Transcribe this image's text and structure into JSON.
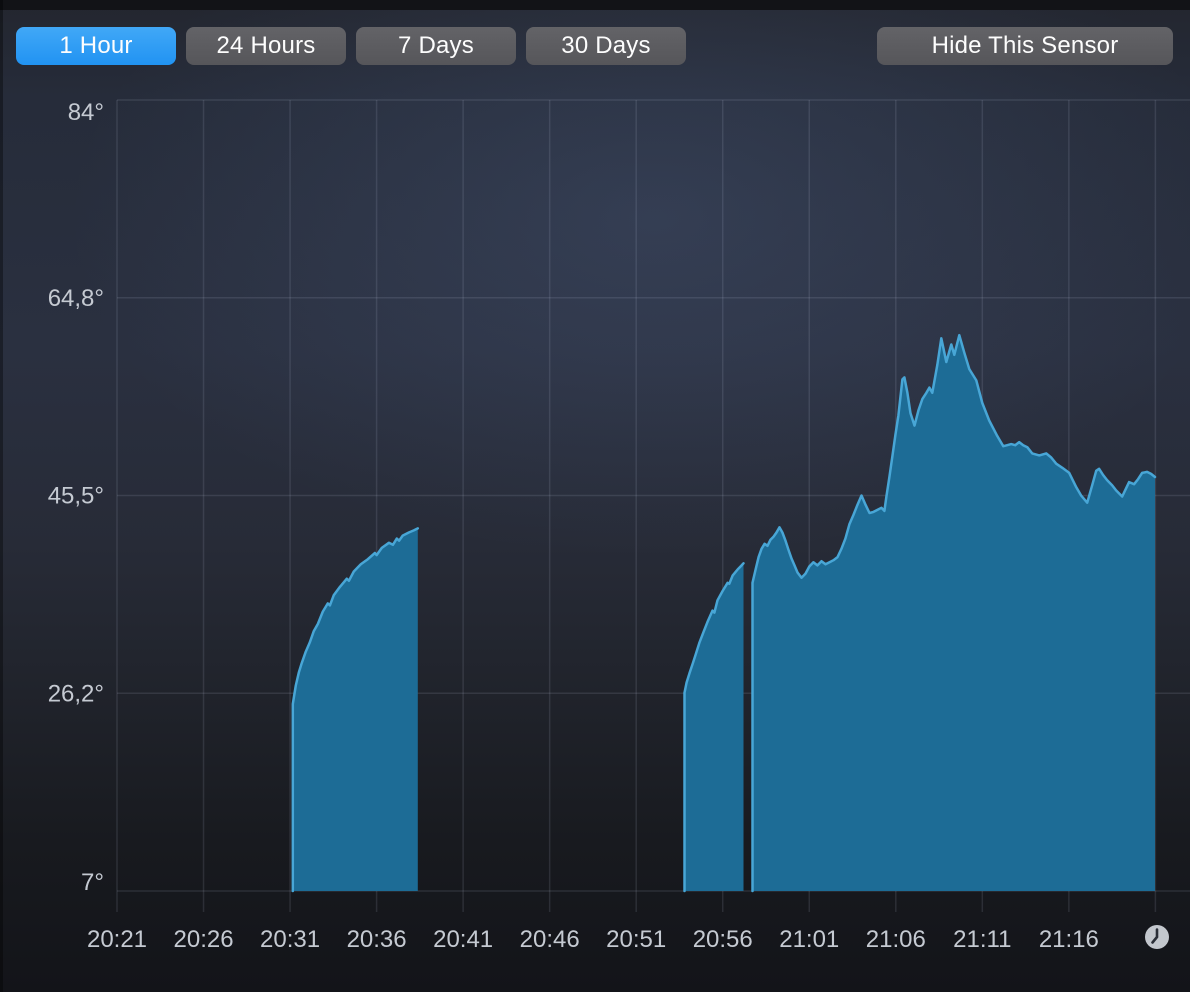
{
  "toolbar": {
    "range_buttons": [
      {
        "id": "1-hour",
        "label": "1 Hour",
        "selected": true
      },
      {
        "id": "24-hours",
        "label": "24 Hours",
        "selected": false
      },
      {
        "id": "7-days",
        "label": "7 Days",
        "selected": false
      },
      {
        "id": "30-days",
        "label": "30 Days",
        "selected": false
      }
    ],
    "hide_sensor_label": "Hide This Sensor"
  },
  "icons": {
    "clock": "clock-icon"
  },
  "chart_data": {
    "type": "area",
    "series_name": "sensor temperature",
    "unit": "°",
    "decimal_separator": ",",
    "legend": null,
    "grid": true,
    "x_axis": {
      "tick_labels": [
        "20:21",
        "20:26",
        "20:31",
        "20:36",
        "20:41",
        "20:46",
        "20:51",
        "20:56",
        "21:01",
        "21:06",
        "21:11",
        "21:16"
      ],
      "tick_minutes": [
        21,
        26,
        31,
        36,
        41,
        46,
        51,
        56,
        61,
        66,
        71,
        76
      ],
      "extra_gridline_minutes": [
        81
      ],
      "domain_minutes": [
        21,
        83
      ],
      "minutes_are_after": "20:00"
    },
    "y_axis": {
      "tick_labels": [
        "84°",
        "64,8°",
        "45,5°",
        "26,2°",
        "7°"
      ],
      "tick_values": [
        84,
        64.75,
        45.5,
        26.25,
        7
      ],
      "domain": [
        7,
        84
      ]
    },
    "colors": {
      "area_fill": "#1d6c96",
      "line": "#48a6d6",
      "grid": "rgba(205,215,235,0.12)",
      "tick_text": "#c5cad2",
      "selected_button": "#2f9ef5"
    },
    "segments": [
      {
        "name": "segment-1",
        "points": [
          [
            31.16,
            25.2
          ],
          [
            31.33,
            27.0
          ],
          [
            31.51,
            28.3
          ],
          [
            31.68,
            29.2
          ],
          [
            31.91,
            30.3
          ],
          [
            32.14,
            31.2
          ],
          [
            32.37,
            32.3
          ],
          [
            32.61,
            33.0
          ],
          [
            32.89,
            34.2
          ],
          [
            33.18,
            35.0
          ],
          [
            33.3,
            34.8
          ],
          [
            33.53,
            35.8
          ],
          [
            33.88,
            36.6
          ],
          [
            34.28,
            37.4
          ],
          [
            34.4,
            37.2
          ],
          [
            34.68,
            38.1
          ],
          [
            35.09,
            38.8
          ],
          [
            35.49,
            39.3
          ],
          [
            35.9,
            39.9
          ],
          [
            36.0,
            39.7
          ],
          [
            36.3,
            40.4
          ],
          [
            36.71,
            40.9
          ],
          [
            36.94,
            40.7
          ],
          [
            37.17,
            41.3
          ],
          [
            37.3,
            41.1
          ],
          [
            37.51,
            41.6
          ],
          [
            37.86,
            41.9
          ],
          [
            38.15,
            42.1
          ],
          [
            38.38,
            42.3
          ]
        ]
      },
      {
        "name": "segment-2",
        "points": [
          [
            53.79,
            26.3
          ],
          [
            53.91,
            27.3
          ],
          [
            54.08,
            28.2
          ],
          [
            54.26,
            29.1
          ],
          [
            54.43,
            30.0
          ],
          [
            54.66,
            31.2
          ],
          [
            54.89,
            32.2
          ],
          [
            55.12,
            33.2
          ],
          [
            55.41,
            34.3
          ],
          [
            55.52,
            34.1
          ],
          [
            55.7,
            35.3
          ],
          [
            55.99,
            36.2
          ],
          [
            56.28,
            37.0
          ],
          [
            56.38,
            36.9
          ],
          [
            56.57,
            37.7
          ],
          [
            56.86,
            38.3
          ],
          [
            57.09,
            38.7
          ],
          [
            57.2,
            38.9
          ]
        ]
      },
      {
        "name": "segment-3",
        "points": [
          [
            57.72,
            37.0
          ],
          [
            57.9,
            38.3
          ],
          [
            58.07,
            39.5
          ],
          [
            58.24,
            40.3
          ],
          [
            58.42,
            40.8
          ],
          [
            58.59,
            40.6
          ],
          [
            58.76,
            41.2
          ],
          [
            58.94,
            41.5
          ],
          [
            59.11,
            41.9
          ],
          [
            59.28,
            42.4
          ],
          [
            59.45,
            41.9
          ],
          [
            59.63,
            41.1
          ],
          [
            59.8,
            40.2
          ],
          [
            59.97,
            39.4
          ],
          [
            60.15,
            38.7
          ],
          [
            60.32,
            38.0
          ],
          [
            60.55,
            37.5
          ],
          [
            60.78,
            37.9
          ],
          [
            61.01,
            38.6
          ],
          [
            61.24,
            39.0
          ],
          [
            61.47,
            38.7
          ],
          [
            61.71,
            39.1
          ],
          [
            61.94,
            38.8
          ],
          [
            62.17,
            39.0
          ],
          [
            62.4,
            39.2
          ],
          [
            62.63,
            39.5
          ],
          [
            62.86,
            40.3
          ],
          [
            63.09,
            41.3
          ],
          [
            63.32,
            42.7
          ],
          [
            63.55,
            43.6
          ],
          [
            63.79,
            44.6
          ],
          [
            64.02,
            45.5
          ],
          [
            64.25,
            44.6
          ],
          [
            64.48,
            43.8
          ],
          [
            64.71,
            43.9
          ],
          [
            64.94,
            44.1
          ],
          [
            65.17,
            44.3
          ],
          [
            65.34,
            44.0
          ],
          [
            65.46,
            45.4
          ],
          [
            65.63,
            47.3
          ],
          [
            65.81,
            49.4
          ],
          [
            65.98,
            51.4
          ],
          [
            66.15,
            53.3
          ],
          [
            66.38,
            56.8
          ],
          [
            66.5,
            57.0
          ],
          [
            66.67,
            55.5
          ],
          [
            66.85,
            53.5
          ],
          [
            67.08,
            52.3
          ],
          [
            67.31,
            53.8
          ],
          [
            67.54,
            54.9
          ],
          [
            67.77,
            55.5
          ],
          [
            67.94,
            56.0
          ],
          [
            68.11,
            55.5
          ],
          [
            68.4,
            58.2
          ],
          [
            68.63,
            60.8
          ],
          [
            68.92,
            58.5
          ],
          [
            69.21,
            60.2
          ],
          [
            69.38,
            59.2
          ],
          [
            69.67,
            61.1
          ],
          [
            69.96,
            59.4
          ],
          [
            70.25,
            57.8
          ],
          [
            70.65,
            56.7
          ],
          [
            71.0,
            54.5
          ],
          [
            71.4,
            52.8
          ],
          [
            71.86,
            51.3
          ],
          [
            72.21,
            50.3
          ],
          [
            72.44,
            50.4
          ],
          [
            72.67,
            50.5
          ],
          [
            72.9,
            50.4
          ],
          [
            73.13,
            50.7
          ],
          [
            73.36,
            50.4
          ],
          [
            73.6,
            50.2
          ],
          [
            73.88,
            49.6
          ],
          [
            74.29,
            49.4
          ],
          [
            74.69,
            49.6
          ],
          [
            74.98,
            49.2
          ],
          [
            75.27,
            48.6
          ],
          [
            75.62,
            48.2
          ],
          [
            76.02,
            47.7
          ],
          [
            76.43,
            46.3
          ],
          [
            76.71,
            45.5
          ],
          [
            77.06,
            44.8
          ],
          [
            77.35,
            46.5
          ],
          [
            77.58,
            47.9
          ],
          [
            77.75,
            48.1
          ],
          [
            77.98,
            47.5
          ],
          [
            78.21,
            47.0
          ],
          [
            78.5,
            46.5
          ],
          [
            78.73,
            46.0
          ],
          [
            79.08,
            45.4
          ],
          [
            79.31,
            46.2
          ],
          [
            79.48,
            46.8
          ],
          [
            79.77,
            46.6
          ],
          [
            80.0,
            47.1
          ],
          [
            80.23,
            47.7
          ],
          [
            80.52,
            47.8
          ],
          [
            80.75,
            47.6
          ],
          [
            80.98,
            47.3
          ]
        ]
      }
    ]
  }
}
